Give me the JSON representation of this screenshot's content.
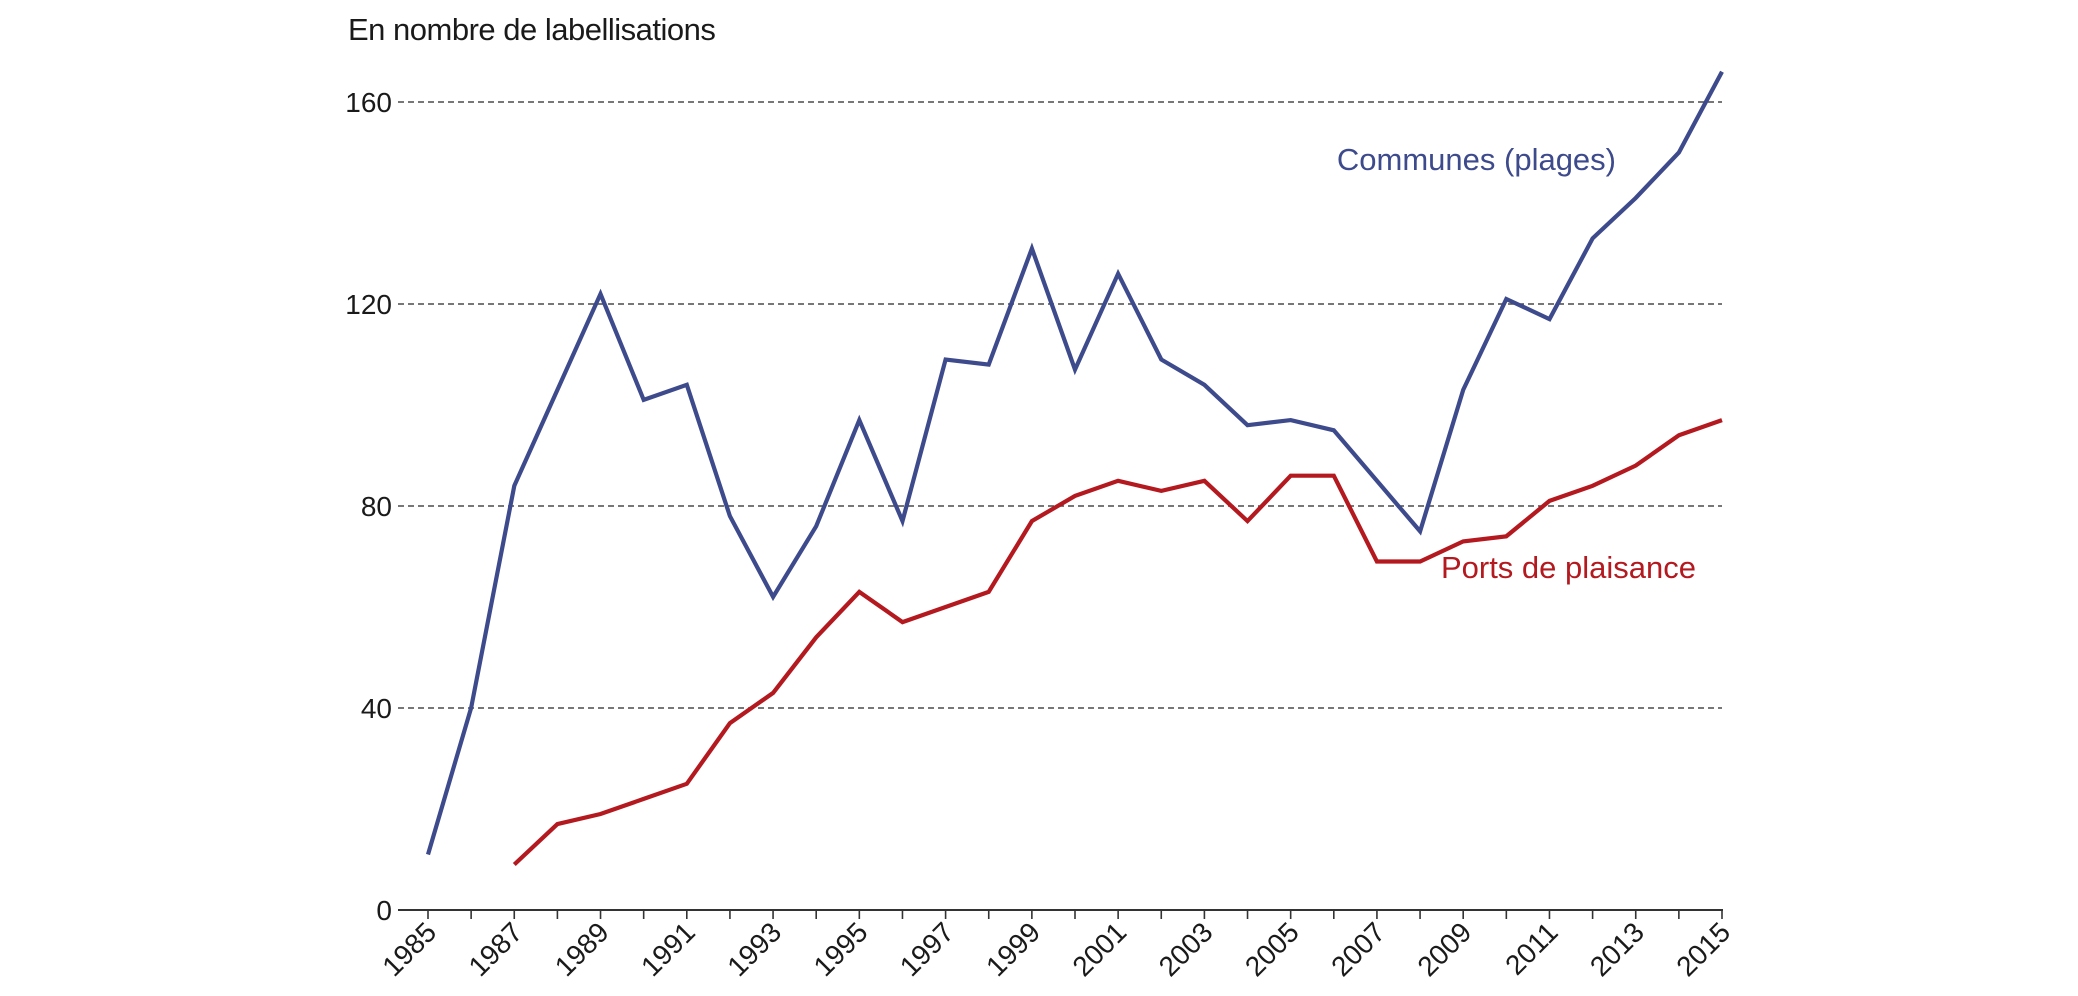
{
  "chart_data": {
    "type": "line",
    "title": "",
    "ylabel": "En nombre de labellisations",
    "xlabel": "",
    "ylim": [
      0,
      160
    ],
    "yticks": [
      0,
      40,
      80,
      120,
      160
    ],
    "xlim": [
      1985,
      2015
    ],
    "xtick_labels": [
      "1985",
      "1987",
      "1989",
      "1991",
      "1993",
      "1995",
      "1997",
      "1999",
      "2001",
      "2003",
      "2005",
      "2007",
      "2009",
      "2011",
      "2013",
      "2015"
    ],
    "grid": "horizontal dashed",
    "legend": "inline labels",
    "series": [
      {
        "name": "Communes (plages)",
        "color": "#3d4a8c",
        "x": [
          1985,
          1986,
          1987,
          1988,
          1989,
          1990,
          1991,
          1992,
          1993,
          1994,
          1995,
          1996,
          1997,
          1998,
          1999,
          2000,
          2001,
          2002,
          2003,
          2004,
          2005,
          2006,
          2007,
          2008,
          2009,
          2010,
          2011,
          2012,
          2013,
          2014,
          2015
        ],
        "values": [
          11,
          40,
          84,
          103,
          122,
          101,
          104,
          78,
          62,
          76,
          97,
          77,
          109,
          108,
          131,
          107,
          126,
          109,
          104,
          96,
          97,
          95,
          85,
          75,
          103,
          121,
          117,
          133,
          141,
          150,
          166
        ]
      },
      {
        "name": "Ports de plaisance",
        "color": "#b3191e",
        "x": [
          1987,
          1988,
          1989,
          1990,
          1991,
          1992,
          1993,
          1994,
          1995,
          1996,
          1997,
          1998,
          1999,
          2000,
          2001,
          2002,
          2003,
          2004,
          2005,
          2006,
          2007,
          2008,
          2009,
          2010,
          2011,
          2012,
          2013,
          2014,
          2015
        ],
        "values": [
          9,
          17,
          19,
          22,
          25,
          37,
          43,
          54,
          63,
          57,
          60,
          63,
          77,
          82,
          85,
          83,
          85,
          77,
          86,
          86,
          69,
          69,
          73,
          74,
          81,
          84,
          88,
          94,
          97
        ]
      }
    ]
  }
}
